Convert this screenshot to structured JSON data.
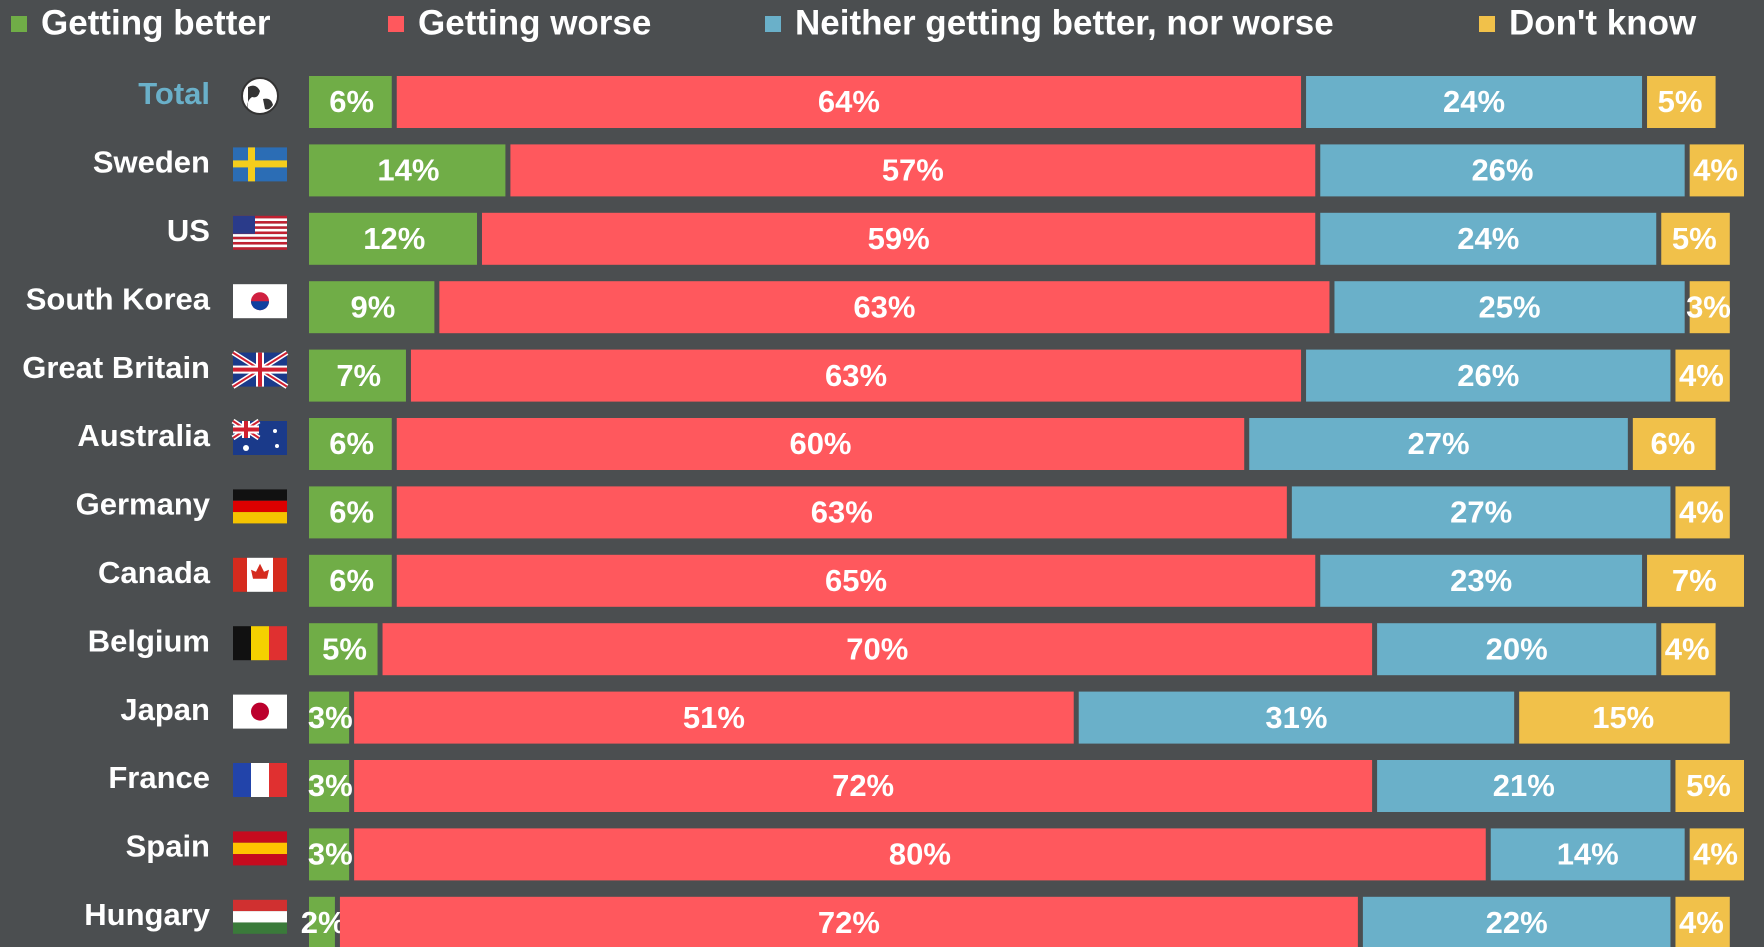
{
  "chart_data": {
    "type": "stacked-bar-horizontal",
    "categories": [
      "Total",
      "Sweden",
      "US",
      "South Korea",
      "Great Britain",
      "Australia",
      "Germany",
      "Canada",
      "Belgium",
      "Japan",
      "France",
      "Spain",
      "Hungary"
    ],
    "xlim": [
      0,
      101
    ],
    "series": [
      {
        "name": "Getting better",
        "color": "#70ad47",
        "values": [
          6,
          14,
          12,
          9,
          7,
          6,
          6,
          6,
          5,
          3,
          3,
          3,
          2
        ],
        "value_labels": [
          "6%",
          "14%",
          "12%",
          "9%",
          "7%",
          "6%",
          "6%",
          "6%",
          "5%",
          "3%",
          "3%",
          "3%",
          "2%"
        ]
      },
      {
        "name": "Getting worse",
        "color": "#ff585d",
        "values": [
          64,
          57,
          59,
          63,
          63,
          60,
          63,
          65,
          70,
          51,
          72,
          80,
          72
        ],
        "value_labels": [
          "64%",
          "57%",
          "59%",
          "63%",
          "63%",
          "60%",
          "63%",
          "65%",
          "70%",
          "51%",
          "72%",
          "80%",
          "72%"
        ]
      },
      {
        "name": "Neither getting better, nor worse",
        "color": "#6ab0c9",
        "values": [
          24,
          26,
          24,
          25,
          26,
          27,
          27,
          23,
          20,
          31,
          21,
          14,
          22
        ],
        "value_labels": [
          "24%",
          "26%",
          "24%",
          "25%",
          "26%",
          "27%",
          "27%",
          "23%",
          "20%",
          "31%",
          "21%",
          "14%",
          "22%"
        ]
      },
      {
        "name": "Don't know",
        "color": "#f1c14a",
        "values": [
          5,
          4,
          5,
          3,
          4,
          6,
          4,
          7,
          4,
          15,
          5,
          4,
          4
        ],
        "value_labels": [
          "5%",
          "4%",
          "5%",
          "3%",
          "4%",
          "6%",
          "4%",
          "7%",
          "4%",
          "15%",
          "5%",
          "4%",
          "4%"
        ]
      }
    ]
  }
}
